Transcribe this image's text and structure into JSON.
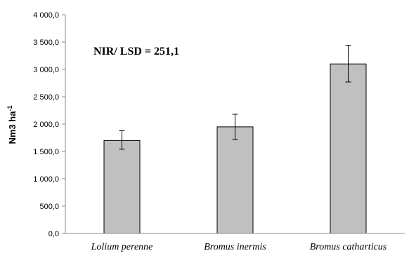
{
  "chart_data": {
    "type": "bar",
    "categories": [
      "Lolium perenne",
      "Bromus inermis",
      "Bromus catharticus"
    ],
    "values": [
      1700,
      1950,
      3100
    ],
    "error_low": [
      1540,
      1720,
      2770
    ],
    "error_high": [
      1880,
      2180,
      3440
    ],
    "ylabel": "Nm3 ha",
    "ylabel_sup": "-1",
    "ylim": [
      0,
      4000
    ],
    "yticks": [
      "0,0",
      "500,0",
      "1 000,0",
      "1 500,0",
      "2 000,0",
      "2 500,0",
      "3 000,0",
      "3 500,0",
      "4 000,0"
    ],
    "ytick_values": [
      0,
      500,
      1000,
      1500,
      2000,
      2500,
      3000,
      3500,
      4000
    ],
    "annotation": "NIR/ LSD = 251,1",
    "grid": false,
    "legend": "none",
    "bar_color": "#c0c0c0",
    "bar_edge_color": "#000000"
  }
}
